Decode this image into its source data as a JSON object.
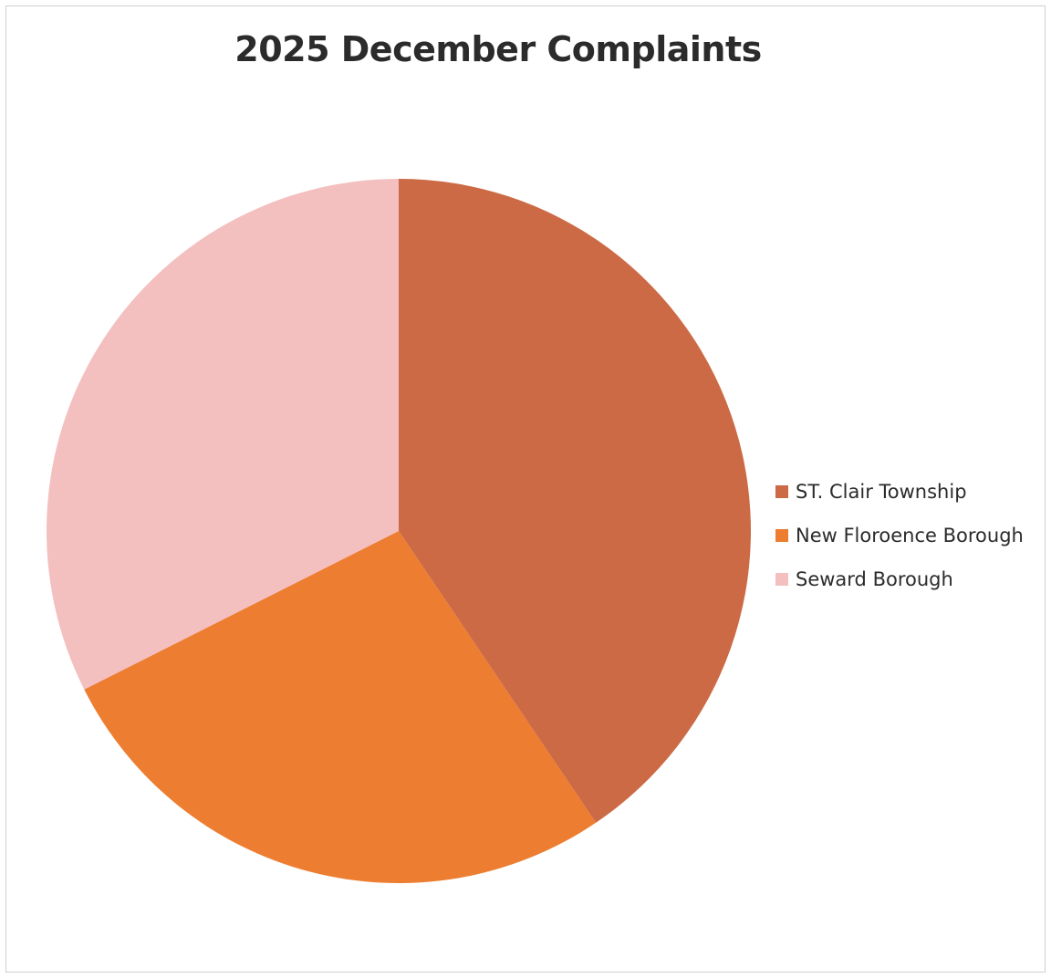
{
  "chart_data": {
    "type": "pie",
    "title": "2025 December Complaints",
    "categories": [
      "ST. Clair Township",
      "New Floroence Borough",
      "Seward Borough"
    ],
    "values": [
      3,
      2,
      2.4
    ],
    "colors": [
      "#cc6a45",
      "#ed7d31",
      "#f4bfbf"
    ],
    "legend": "right",
    "start_angle_deg": 0,
    "direction": "clockwise"
  }
}
